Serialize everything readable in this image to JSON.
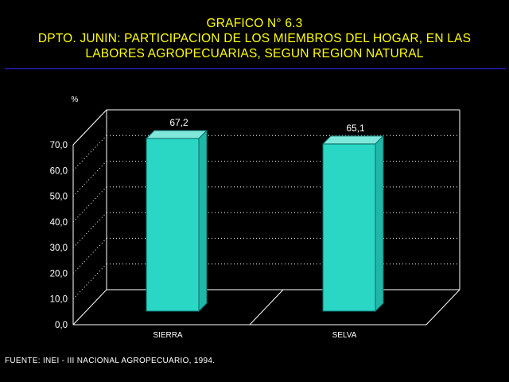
{
  "header": {
    "line1": "GRAFICO N° 6.3",
    "line2": "DPTO. JUNIN: PARTICIPACION DE LOS MIEMBROS DEL HOGAR, EN LAS",
    "line3": "LABORES AGROPECUARIAS, SEGUN REGION NATURAL"
  },
  "chart_data": {
    "type": "bar",
    "categories": [
      "SIERRA",
      "SELVA"
    ],
    "values": [
      67.2,
      65.1
    ],
    "value_labels": [
      "67,2",
      "65,1"
    ],
    "ylabel": "%",
    "ylim": [
      0,
      70
    ],
    "yticks": [
      "0,0",
      "10,0",
      "20,0",
      "30,0",
      "40,0",
      "50,0",
      "60,0",
      "70,0"
    ],
    "grid": true,
    "style": "3d",
    "colors": {
      "bar": "#2ad6c4",
      "bar_top": "#7fe8da",
      "axis": "#ffffff",
      "grid": "#ffffff"
    }
  },
  "footer": {
    "source": "FUENTE: INEI - III NACIONAL AGROPECUARIO, 1994."
  }
}
